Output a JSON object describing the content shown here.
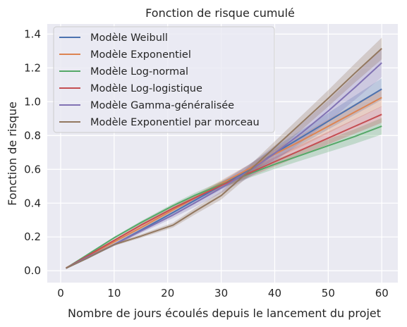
{
  "chart_data": {
    "type": "line",
    "title": "Fonction de risque cumulé",
    "xlabel": "Nombre de jours écoulés depuis le lancement du projet",
    "ylabel": "Fonction de risque",
    "xlim": [
      -2.5,
      63
    ],
    "ylim": [
      -0.07,
      1.46
    ],
    "xticks": [
      0,
      10,
      20,
      30,
      40,
      50,
      60
    ],
    "xtick_labels": [
      "0",
      "10",
      "20",
      "30",
      "40",
      "50",
      "60"
    ],
    "yticks": [
      0.0,
      0.2,
      0.4,
      0.6,
      0.8,
      1.0,
      1.2,
      1.4
    ],
    "ytick_labels": [
      "0.0",
      "0.2",
      "0.4",
      "0.6",
      "0.8",
      "1.0",
      "1.2",
      "1.4"
    ],
    "grid": true,
    "legend_position": "top-left",
    "x": [
      1,
      5,
      10,
      15,
      21,
      25,
      30,
      35,
      40,
      45,
      50,
      55,
      60
    ],
    "series": [
      {
        "name": "Modèle Weibull",
        "color": "#4c72b0",
        "values": [
          0.015,
          0.075,
          0.155,
          0.24,
          0.345,
          0.415,
          0.505,
          0.595,
          0.695,
          0.79,
          0.885,
          0.98,
          1.075
        ],
        "band": 0.06
      },
      {
        "name": "Modèle Exponentiel",
        "color": "#dd8452",
        "values": [
          0.017,
          0.085,
          0.17,
          0.255,
          0.36,
          0.43,
          0.515,
          0.6,
          0.69,
          0.77,
          0.855,
          0.94,
          1.025
        ],
        "band": 0.05
      },
      {
        "name": "Modèle Log-normal",
        "color": "#55a868",
        "values": [
          0.015,
          0.095,
          0.195,
          0.285,
          0.385,
          0.445,
          0.51,
          0.57,
          0.63,
          0.685,
          0.74,
          0.795,
          0.855
        ],
        "band": 0.045
      },
      {
        "name": "Modèle Log-logistique",
        "color": "#c44e52",
        "values": [
          0.015,
          0.088,
          0.18,
          0.27,
          0.37,
          0.43,
          0.505,
          0.575,
          0.645,
          0.715,
          0.785,
          0.855,
          0.925
        ],
        "band": 0.045
      },
      {
        "name": "Modèle Gamma-généralisée",
        "color": "#8172b3",
        "values": [
          0.015,
          0.08,
          0.155,
          0.235,
          0.33,
          0.4,
          0.49,
          0.585,
          0.695,
          0.815,
          0.945,
          1.085,
          1.23
        ],
        "band": 0.08
      },
      {
        "name": "Modèle Exponentiel par morceau",
        "color": "#937860",
        "values": [
          0.015,
          0.075,
          0.155,
          0.205,
          0.27,
          0.35,
          0.445,
          0.585,
          0.73,
          0.875,
          1.02,
          1.17,
          1.315
        ],
        "band": 0.06
      }
    ]
  }
}
